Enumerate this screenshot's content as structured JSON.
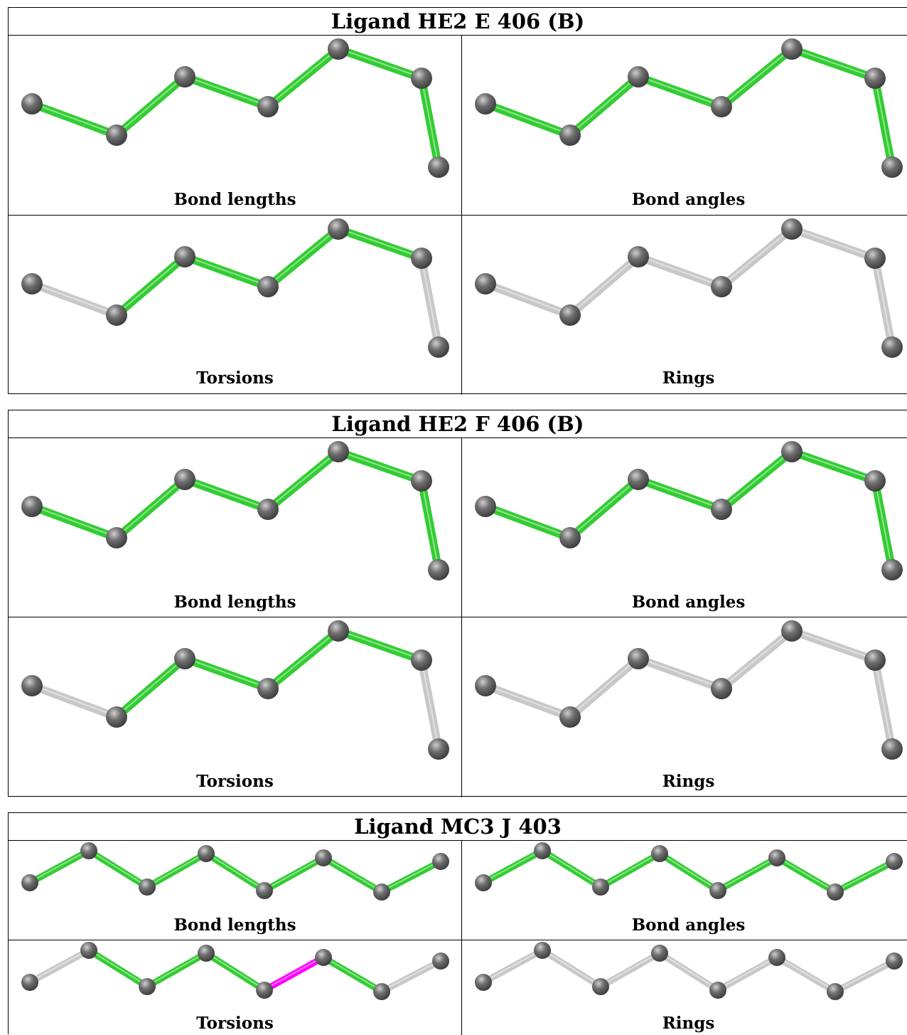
{
  "panels": [
    {
      "title": "Ligand HE2 E 406 (B)",
      "cells": [
        {
          "caption": "Bond lengths"
        },
        {
          "caption": "Bond angles"
        },
        {
          "caption": "Torsions"
        },
        {
          "caption": "Rings"
        }
      ]
    },
    {
      "title": "Ligand HE2 F 406 (B)",
      "cells": [
        {
          "caption": "Bond lengths"
        },
        {
          "caption": "Bond angles"
        },
        {
          "caption": "Torsions"
        },
        {
          "caption": "Rings"
        }
      ]
    },
    {
      "title": "Ligand MC3 J 403",
      "cells": [
        {
          "caption": "Bond lengths"
        },
        {
          "caption": "Bond angles"
        },
        {
          "caption": "Torsions"
        },
        {
          "caption": "Rings"
        }
      ]
    }
  ],
  "colors": {
    "bond_ok": "#33cc33",
    "bond_neutral": "#c8c8c8",
    "bond_outlier": "#ff00ff",
    "atom": "#6e6e6e"
  }
}
